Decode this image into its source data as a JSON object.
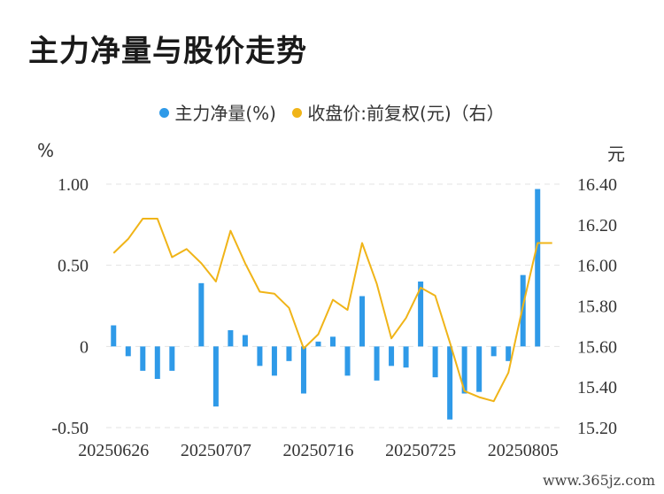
{
  "title": "主力净量与股价走势",
  "legend": {
    "bar_label": "主力净量(%)",
    "line_label": "收盘价:前复权(元)（右）"
  },
  "units": {
    "left": "%",
    "right": "元"
  },
  "watermark": "www.365jz.com",
  "colors": {
    "bar": "#2f9ae8",
    "line": "#f0b418",
    "grid": "#e3e3e3"
  },
  "chart_data": {
    "type": "bar",
    "title": "主力净量与股价走势",
    "x": [
      "20250626",
      "20250627",
      "20250630",
      "20250701",
      "20250702",
      "20250703",
      "20250704",
      "20250707",
      "20250708",
      "20250709",
      "20250710",
      "20250711",
      "20250714",
      "20250715",
      "20250716",
      "20250717",
      "20250718",
      "20250721",
      "20250722",
      "20250723",
      "20250724",
      "20250725",
      "20250728",
      "20250729",
      "20250730",
      "20250731",
      "20250801",
      "20250804",
      "20250805",
      "20250806",
      "20250807"
    ],
    "x_tick_labels": [
      "20250626",
      "20250707",
      "20250716",
      "20250725",
      "20250805"
    ],
    "y_left_ticks": [
      "1.00",
      "0.50",
      "0",
      "-0.50"
    ],
    "y_right_ticks": [
      "16.40",
      "16.20",
      "16.00",
      "15.80",
      "15.60",
      "15.40",
      "15.20"
    ],
    "y_left_lim": [
      -0.5,
      1.0
    ],
    "y_right_lim": [
      15.2,
      16.4
    ],
    "series": [
      {
        "name": "主力净量(%)",
        "type": "bar",
        "axis": "left",
        "values": [
          0.13,
          -0.06,
          -0.15,
          -0.2,
          -0.15,
          0,
          0.39,
          -0.37,
          0.1,
          0.07,
          -0.12,
          -0.18,
          -0.09,
          -0.29,
          0.03,
          0.06,
          -0.18,
          0.31,
          -0.21,
          -0.12,
          -0.13,
          0.4,
          -0.19,
          -0.45,
          -0.29,
          -0.28,
          -0.06,
          -0.09,
          0.44,
          0.97,
          0
        ]
      },
      {
        "name": "收盘价:前复权(元)（右）",
        "type": "line",
        "axis": "right",
        "values": [
          16.06,
          16.13,
          16.23,
          16.23,
          16.04,
          16.08,
          16.01,
          15.92,
          16.17,
          16.01,
          15.87,
          15.86,
          15.79,
          15.59,
          15.66,
          15.83,
          15.78,
          16.11,
          15.91,
          15.64,
          15.74,
          15.89,
          15.85,
          15.62,
          15.38,
          15.35,
          15.33,
          15.47,
          15.8,
          16.11,
          16.11
        ]
      }
    ],
    "grid": "horizontal dashed",
    "legend_position": "top-center"
  }
}
